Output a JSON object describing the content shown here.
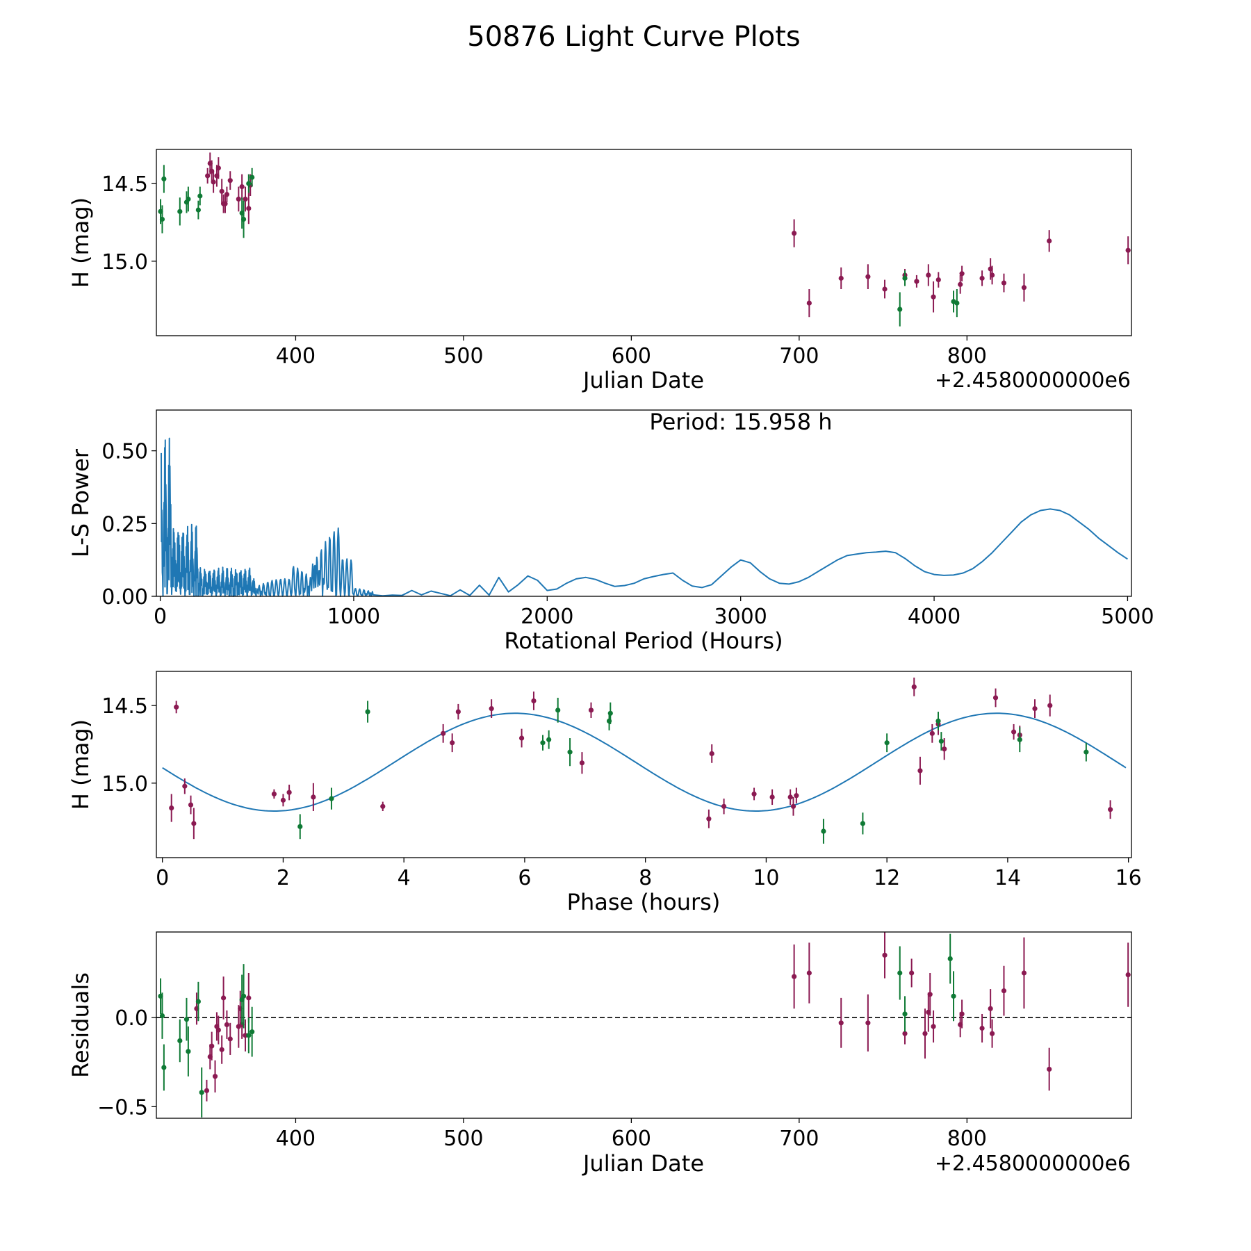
{
  "title": "50876 Light Curve Plots",
  "colors": {
    "filter_a": "#8b1a52",
    "filter_b": "#0f7a35",
    "model": "#1f77b4",
    "axis": "#000000"
  },
  "chart_data": [
    {
      "type": "scatter",
      "name": "lightcurve",
      "title": "",
      "xlabel": "Julian Date",
      "ylabel": "H (mag)",
      "offset_text": "+2.4580000000e6",
      "xlim": [
        317,
        898
      ],
      "ylim": [
        14.28,
        15.48
      ],
      "yinvert": true,
      "xticks": [
        400,
        500,
        600,
        700,
        800
      ],
      "yticks": [
        15.0,
        14.5
      ],
      "ytick_labels": [
        "15.0",
        "14.5"
      ],
      "series": [
        {
          "name": "filter-a",
          "color": "#8b1a52",
          "points": [
            [
              347.5,
              14.45,
              0.05
            ],
            [
              349,
              14.37,
              0.07
            ],
            [
              350,
              14.42,
              0.07
            ],
            [
              351,
              14.49,
              0.07
            ],
            [
              353,
              14.45,
              0.07
            ],
            [
              354,
              14.4,
              0.07
            ],
            [
              356,
              14.55,
              0.08
            ],
            [
              357,
              14.63,
              0.06
            ],
            [
              358,
              14.63,
              0.06
            ],
            [
              359,
              14.57,
              0.05
            ],
            [
              361,
              14.48,
              0.06
            ],
            [
              366,
              14.6,
              0.08
            ],
            [
              368,
              14.52,
              0.08
            ],
            [
              370,
              14.6,
              0.08
            ],
            [
              372,
              14.66,
              0.1
            ],
            [
              697,
              14.82,
              0.09
            ],
            [
              706,
              15.27,
              0.09
            ],
            [
              725,
              15.11,
              0.07
            ],
            [
              741,
              15.1,
              0.08
            ],
            [
              751,
              15.18,
              0.06
            ],
            [
              763,
              15.09,
              0.04
            ],
            [
              770,
              15.13,
              0.04
            ],
            [
              777,
              15.09,
              0.07
            ],
            [
              780,
              15.23,
              0.1
            ],
            [
              783,
              15.12,
              0.05
            ],
            [
              796,
              15.15,
              0.06
            ],
            [
              797,
              15.08,
              0.05
            ],
            [
              809,
              15.11,
              0.05
            ],
            [
              814,
              15.05,
              0.07
            ],
            [
              815,
              15.09,
              0.06
            ],
            [
              822,
              15.14,
              0.06
            ],
            [
              834,
              15.17,
              0.09
            ],
            [
              849,
              14.87,
              0.07
            ],
            [
              896,
              14.93,
              0.09
            ],
            [
              373,
              14.51,
              0.07
            ]
          ]
        },
        {
          "name": "filter-b",
          "color": "#0f7a35",
          "points": [
            [
              319.5,
              14.68,
              0.08
            ],
            [
              320.5,
              14.73,
              0.09
            ],
            [
              321.5,
              14.47,
              0.09
            ],
            [
              331,
              14.68,
              0.09
            ],
            [
              335,
              14.62,
              0.07
            ],
            [
              336,
              14.6,
              0.08
            ],
            [
              342,
              14.67,
              0.06
            ],
            [
              343,
              14.58,
              0.06
            ],
            [
              368,
              14.69,
              0.1
            ],
            [
              369,
              14.73,
              0.12
            ],
            [
              372,
              14.5,
              0.06
            ],
            [
              374,
              14.46,
              0.06
            ],
            [
              760,
              15.31,
              0.11
            ],
            [
              763,
              15.11,
              0.05
            ],
            [
              792,
              15.26,
              0.07
            ],
            [
              794,
              15.27,
              0.09
            ]
          ]
        }
      ]
    },
    {
      "type": "line",
      "name": "periodogram",
      "title": "",
      "xlabel": "Rotational Period (Hours)",
      "ylabel": "L-S Power",
      "annotation": "Period: 15.958 h",
      "xlim": [
        -20,
        5020
      ],
      "ylim": [
        0.0,
        0.64
      ],
      "xticks": [
        0,
        1000,
        2000,
        3000,
        4000,
        5000
      ],
      "yticks": [
        0.0,
        0.25,
        0.5
      ],
      "ytick_labels": [
        "0.00",
        "0.25",
        "0.50"
      ],
      "series": [
        {
          "name": "ls-power",
          "color": "#1f77b4",
          "x": [
            1100,
            1150,
            1200,
            1250,
            1300,
            1350,
            1400,
            1450,
            1500,
            1550,
            1600,
            1650,
            1700,
            1750,
            1800,
            1850,
            1900,
            1950,
            2000,
            2050,
            2100,
            2150,
            2200,
            2250,
            2300,
            2350,
            2400,
            2450,
            2500,
            2550,
            2600,
            2650,
            2700,
            2750,
            2800,
            2850,
            2900,
            2950,
            3000,
            3050,
            3100,
            3150,
            3200,
            3250,
            3300,
            3350,
            3400,
            3450,
            3500,
            3550,
            3600,
            3650,
            3700,
            3750,
            3800,
            3850,
            3900,
            3950,
            4000,
            4050,
            4100,
            4150,
            4200,
            4250,
            4300,
            4350,
            4400,
            4450,
            4500,
            4550,
            4600,
            4650,
            4700,
            4750,
            4800,
            4850,
            4900,
            4950,
            5000
          ],
          "y": [
            0.005,
            0.002,
            0.004,
            0.003,
            0.02,
            0.005,
            0.018,
            0.01,
            0.002,
            0.022,
            0.003,
            0.038,
            0.004,
            0.065,
            0.015,
            0.04,
            0.07,
            0.055,
            0.02,
            0.025,
            0.045,
            0.06,
            0.065,
            0.058,
            0.045,
            0.034,
            0.037,
            0.045,
            0.06,
            0.068,
            0.075,
            0.08,
            0.055,
            0.035,
            0.03,
            0.04,
            0.07,
            0.1,
            0.125,
            0.115,
            0.085,
            0.06,
            0.045,
            0.042,
            0.05,
            0.065,
            0.085,
            0.105,
            0.125,
            0.14,
            0.145,
            0.15,
            0.152,
            0.155,
            0.15,
            0.13,
            0.105,
            0.085,
            0.075,
            0.072,
            0.073,
            0.08,
            0.095,
            0.12,
            0.15,
            0.185,
            0.22,
            0.255,
            0.28,
            0.295,
            0.3,
            0.295,
            0.28,
            0.255,
            0.23,
            0.2,
            0.175,
            0.15,
            0.128
          ]
        }
      ]
    },
    {
      "type": "scatter",
      "name": "phased",
      "title": "",
      "xlabel": "Phase (hours)",
      "ylabel": "H (mag)",
      "xlim": [
        -0.1,
        16.05
      ],
      "ylim": [
        14.28,
        15.48
      ],
      "yinvert": true,
      "xticks": [
        0,
        2,
        4,
        6,
        8,
        10,
        12,
        14,
        16
      ],
      "yticks": [
        15.0,
        14.5
      ],
      "ytick_labels": [
        "15.0",
        "14.5"
      ],
      "model": {
        "period": 15.958,
        "mean": 14.865,
        "amplitude": 0.315,
        "peak_phase": 1.85
      },
      "series": [
        {
          "name": "filter-a",
          "color": "#8b1a52",
          "points": [
            [
              0.15,
              15.16,
              0.09
            ],
            [
              0.23,
              14.51,
              0.04
            ],
            [
              0.37,
              15.02,
              0.05
            ],
            [
              0.47,
              15.14,
              0.06
            ],
            [
              0.52,
              15.26,
              0.1
            ],
            [
              1.85,
              15.07,
              0.03
            ],
            [
              2.0,
              15.11,
              0.04
            ],
            [
              2.1,
              15.06,
              0.05
            ],
            [
              2.5,
              15.09,
              0.09
            ],
            [
              3.65,
              15.15,
              0.03
            ],
            [
              4.65,
              14.68,
              0.06
            ],
            [
              4.8,
              14.74,
              0.06
            ],
            [
              4.9,
              14.54,
              0.05
            ],
            [
              5.45,
              14.52,
              0.06
            ],
            [
              5.95,
              14.71,
              0.06
            ],
            [
              6.15,
              14.47,
              0.06
            ],
            [
              6.95,
              14.87,
              0.07
            ],
            [
              7.1,
              14.53,
              0.05
            ],
            [
              9.05,
              15.23,
              0.06
            ],
            [
              9.1,
              14.81,
              0.06
            ],
            [
              9.3,
              15.15,
              0.05
            ],
            [
              9.8,
              15.07,
              0.04
            ],
            [
              10.1,
              15.09,
              0.05
            ],
            [
              10.4,
              15.09,
              0.05
            ],
            [
              10.45,
              15.15,
              0.06
            ],
            [
              10.5,
              15.08,
              0.05
            ],
            [
              12.45,
              14.38,
              0.06
            ],
            [
              12.55,
              14.92,
              0.09
            ],
            [
              12.75,
              14.68,
              0.06
            ],
            [
              12.95,
              14.78,
              0.07
            ],
            [
              13.8,
              14.45,
              0.06
            ],
            [
              14.1,
              14.67,
              0.05
            ],
            [
              14.45,
              14.52,
              0.06
            ],
            [
              14.7,
              14.5,
              0.07
            ],
            [
              15.7,
              15.17,
              0.06
            ],
            [
              12.85,
              14.62,
              0.07
            ],
            [
              14.2,
              14.69,
              0.06
            ]
          ]
        },
        {
          "name": "filter-b",
          "color": "#0f7a35",
          "points": [
            [
              2.28,
              15.28,
              0.08
            ],
            [
              2.8,
              15.1,
              0.07
            ],
            [
              3.4,
              14.54,
              0.07
            ],
            [
              6.3,
              14.74,
              0.05
            ],
            [
              6.4,
              14.72,
              0.06
            ],
            [
              6.55,
              14.53,
              0.08
            ],
            [
              6.75,
              14.8,
              0.09
            ],
            [
              7.4,
              14.6,
              0.06
            ],
            [
              7.42,
              14.55,
              0.07
            ],
            [
              10.95,
              15.31,
              0.08
            ],
            [
              11.6,
              15.26,
              0.07
            ],
            [
              12.0,
              14.74,
              0.06
            ],
            [
              12.85,
              14.6,
              0.06
            ],
            [
              12.9,
              14.73,
              0.06
            ],
            [
              14.2,
              14.72,
              0.08
            ],
            [
              15.3,
              14.8,
              0.06
            ]
          ]
        }
      ]
    },
    {
      "type": "scatter",
      "name": "residuals",
      "title": "",
      "xlabel": "Julian Date",
      "ylabel": "Residuals",
      "offset_text": "+2.4580000000e6",
      "xlim": [
        317,
        898
      ],
      "ylim": [
        -0.565,
        0.48
      ],
      "yinvert": false,
      "hline": 0.0,
      "xticks": [
        400,
        500,
        600,
        700,
        800
      ],
      "yticks": [
        0.0,
        -0.5
      ],
      "ytick_labels": [
        "0.0",
        "−0.5"
      ],
      "series": [
        {
          "name": "filter-a",
          "color": "#8b1a52",
          "points": [
            [
              341,
              0.05,
              0.09
            ],
            [
              347,
              -0.41,
              0.06
            ],
            [
              349,
              -0.22,
              0.07
            ],
            [
              350,
              -0.16,
              0.08
            ],
            [
              352,
              -0.33,
              0.09
            ],
            [
              353,
              -0.05,
              0.08
            ],
            [
              354,
              -0.07,
              0.08
            ],
            [
              356,
              -0.18,
              0.08
            ],
            [
              357,
              0.11,
              0.12
            ],
            [
              359,
              -0.04,
              0.08
            ],
            [
              361,
              -0.12,
              0.09
            ],
            [
              366,
              -0.05,
              0.12
            ],
            [
              367,
              0.05,
              0.1
            ],
            [
              368,
              -0.04,
              0.08
            ],
            [
              370,
              -0.1,
              0.09
            ],
            [
              372,
              0.11,
              0.14
            ],
            [
              697,
              0.23,
              0.18
            ],
            [
              706,
              0.25,
              0.17
            ],
            [
              725,
              -0.03,
              0.14
            ],
            [
              741,
              -0.03,
              0.16
            ],
            [
              751,
              0.35,
              0.13
            ],
            [
              763,
              -0.09,
              0.06
            ],
            [
              767,
              0.25,
              0.08
            ],
            [
              775,
              -0.09,
              0.14
            ],
            [
              777,
              0.03,
              0.11
            ],
            [
              778,
              0.13,
              0.12
            ],
            [
              780,
              -0.05,
              0.09
            ],
            [
              796,
              -0.04,
              0.07
            ],
            [
              797,
              0.02,
              0.08
            ],
            [
              809,
              -0.06,
              0.08
            ],
            [
              814,
              0.05,
              0.11
            ],
            [
              815,
              -0.09,
              0.08
            ],
            [
              822,
              0.15,
              0.14
            ],
            [
              834,
              0.25,
              0.2
            ],
            [
              849,
              -0.29,
              0.12
            ],
            [
              896,
              0.24,
              0.18
            ]
          ]
        },
        {
          "name": "filter-b",
          "color": "#0f7a35",
          "points": [
            [
              319.5,
              0.12,
              0.1
            ],
            [
              320.5,
              0.01,
              0.13
            ],
            [
              321.5,
              -0.28,
              0.13
            ],
            [
              331,
              -0.13,
              0.12
            ],
            [
              335,
              -0.01,
              0.12
            ],
            [
              336,
              -0.19,
              0.14
            ],
            [
              342,
              0.09,
              0.11
            ],
            [
              344,
              -0.42,
              0.14
            ],
            [
              368,
              0.1,
              0.14
            ],
            [
              369,
              0.12,
              0.18
            ],
            [
              372,
              -0.1,
              0.1
            ],
            [
              374,
              -0.08,
              0.14
            ],
            [
              760,
              0.25,
              0.15
            ],
            [
              763,
              0.02,
              0.1
            ],
            [
              790,
              0.33,
              0.14
            ],
            [
              792,
              0.12,
              0.14
            ]
          ]
        }
      ]
    }
  ]
}
